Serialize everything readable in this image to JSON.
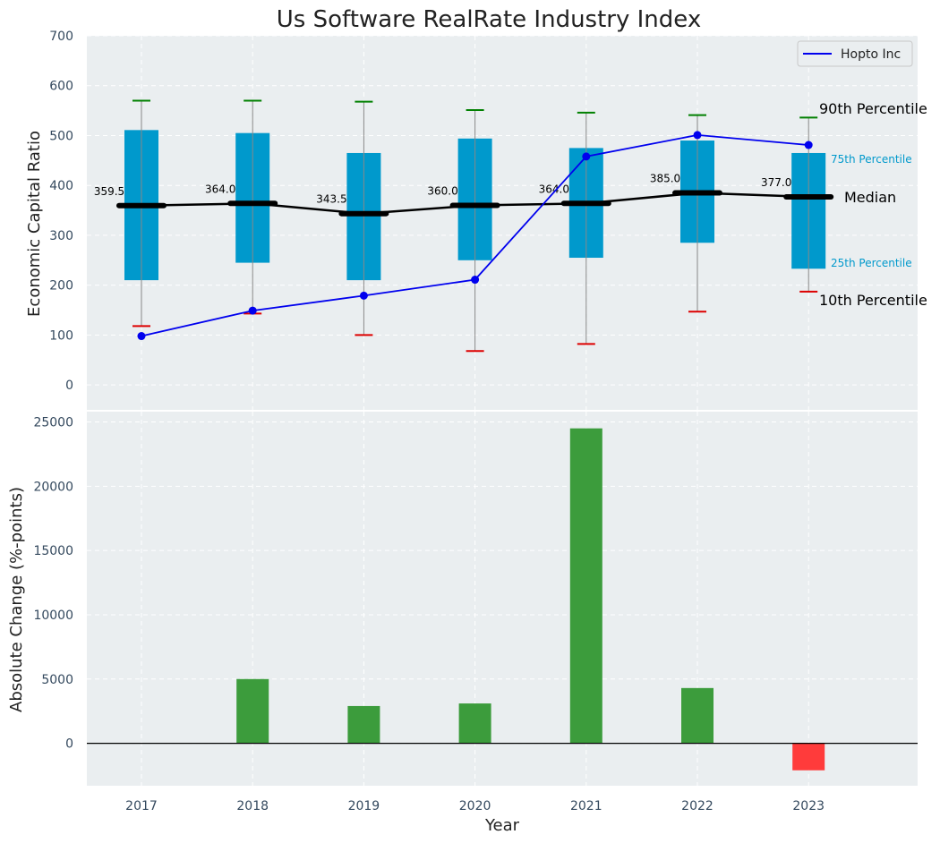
{
  "chart_data": [
    {
      "type": "box",
      "title": "Us Software RealRate Industry Index",
      "ylabel": "Economic Capital Ratio",
      "ylim": [
        -50,
        700
      ],
      "yticks": [
        0,
        100,
        200,
        300,
        400,
        500,
        600,
        700
      ],
      "categories": [
        "2017",
        "2018",
        "2019",
        "2020",
        "2021",
        "2022",
        "2023"
      ],
      "p10": [
        118,
        143,
        100,
        68,
        82,
        147,
        187
      ],
      "p25": [
        210,
        245,
        210,
        250,
        255,
        285,
        233
      ],
      "median": [
        359.5,
        364.0,
        343.5,
        360.0,
        364.0,
        385.0,
        377.0
      ],
      "median_labels": [
        "359.5",
        "364.0",
        "343.5",
        "360.0",
        "364.0",
        "385.0",
        "377.0"
      ],
      "p75": [
        511,
        505,
        465,
        494,
        475,
        490,
        465
      ],
      "p90": [
        570,
        570,
        568,
        551,
        546,
        541,
        536
      ],
      "series": [
        {
          "name": "Hopto Inc",
          "values": [
            98,
            149,
            179,
            211,
            458,
            501,
            481
          ]
        }
      ],
      "legend": "top-right",
      "annotations": {
        "p90": "90th Percentile",
        "p75": "75th Percentile",
        "median": "Median",
        "p25": "25th Percentile",
        "p10": "10th Percentile"
      },
      "grid": true,
      "colors": {
        "box": "#0099cc",
        "median_line": "#000000",
        "company": "#0000ee",
        "p90_cap": "#008000",
        "p10_cap": "#dd0000",
        "whisker": "#888888",
        "background": "#eaeef0"
      }
    },
    {
      "type": "bar",
      "xlabel": "Year",
      "ylabel": "Absolute Change (%-points)",
      "ylim": [
        -3300,
        25800
      ],
      "yticks": [
        0,
        5000,
        10000,
        15000,
        20000,
        25000
      ],
      "categories": [
        "2017",
        "2018",
        "2019",
        "2020",
        "2021",
        "2022",
        "2023"
      ],
      "values": [
        0,
        5000,
        2900,
        3100,
        24500,
        4300,
        -2100
      ],
      "grid": true,
      "colors": {
        "positive": "#3c9c3c",
        "negative": "#ff3b3b",
        "zero_line": "#000000"
      }
    }
  ]
}
